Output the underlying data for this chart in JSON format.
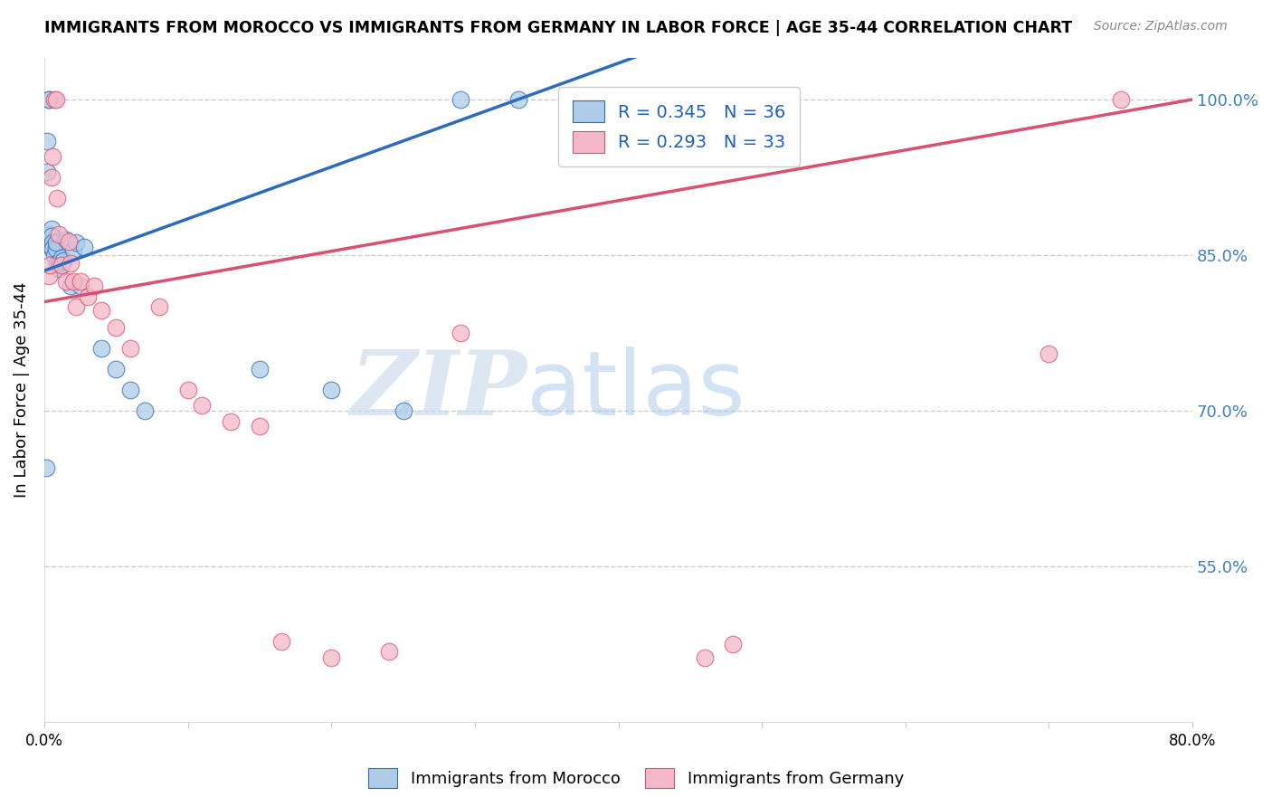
{
  "title": "IMMIGRANTS FROM MOROCCO VS IMMIGRANTS FROM GERMANY IN LABOR FORCE | AGE 35-44 CORRELATION CHART",
  "source": "Source: ZipAtlas.com",
  "ylabel": "In Labor Force | Age 35-44",
  "legend_bottom": [
    "Immigrants from Morocco",
    "Immigrants from Germany"
  ],
  "xlim": [
    0.0,
    0.8
  ],
  "ylim": [
    0.4,
    1.04
  ],
  "yticks": [
    0.55,
    0.7,
    0.85,
    1.0
  ],
  "ytick_labels": [
    "55.0%",
    "70.0%",
    "85.0%",
    "100.0%"
  ],
  "xticks": [
    0.0,
    0.1,
    0.2,
    0.3,
    0.4,
    0.5,
    0.6,
    0.7,
    0.8
  ],
  "xtick_labels": [
    "0.0%",
    "",
    "",
    "",
    "",
    "",
    "",
    "",
    "80.0%"
  ],
  "R_morocco": 0.345,
  "N_morocco": 36,
  "R_germany": 0.293,
  "N_germany": 33,
  "blue_color": "#aecce8",
  "blue_line_color": "#2d6bbf",
  "pink_color": "#f5b8c8",
  "pink_line_color": "#d95070",
  "watermark_zip": "ZIP",
  "watermark_atlas": "atlas",
  "morocco_x": [
    0.001,
    0.002,
    0.002,
    0.003,
    0.003,
    0.004,
    0.004,
    0.005,
    0.005,
    0.005,
    0.006,
    0.006,
    0.007,
    0.008,
    0.008,
    0.009,
    0.01,
    0.01,
    0.011,
    0.012,
    0.013,
    0.015,
    0.018,
    0.02,
    0.022,
    0.025,
    0.028,
    0.04,
    0.05,
    0.06,
    0.07,
    0.15,
    0.2,
    0.25,
    0.29,
    0.33
  ],
  "morocco_y": [
    0.645,
    0.96,
    0.93,
    1.0,
    1.0,
    0.87,
    0.86,
    0.875,
    0.868,
    0.857,
    0.862,
    0.856,
    0.85,
    0.856,
    0.862,
    0.842,
    0.842,
    0.837,
    0.843,
    0.847,
    0.845,
    0.865,
    0.82,
    0.855,
    0.862,
    0.82,
    0.858,
    0.76,
    0.74,
    0.72,
    0.7,
    0.74,
    0.72,
    0.7,
    1.0,
    1.0
  ],
  "germany_x": [
    0.003,
    0.004,
    0.005,
    0.006,
    0.007,
    0.008,
    0.009,
    0.01,
    0.012,
    0.015,
    0.017,
    0.018,
    0.02,
    0.022,
    0.025,
    0.03,
    0.035,
    0.04,
    0.05,
    0.06,
    0.08,
    0.1,
    0.11,
    0.13,
    0.15,
    0.165,
    0.2,
    0.24,
    0.29,
    0.46,
    0.48,
    0.7,
    0.75
  ],
  "germany_y": [
    0.83,
    0.84,
    0.925,
    0.945,
    1.0,
    1.0,
    0.905,
    0.87,
    0.84,
    0.825,
    0.863,
    0.842,
    0.825,
    0.8,
    0.825,
    0.81,
    0.82,
    0.797,
    0.78,
    0.76,
    0.8,
    0.72,
    0.705,
    0.69,
    0.685,
    0.478,
    0.462,
    0.468,
    0.775,
    0.462,
    0.475,
    0.755,
    1.0
  ],
  "blue_trend_x0": 0.0,
  "blue_trend_y0": 0.835,
  "blue_trend_x1": 0.33,
  "blue_trend_y1": 1.0,
  "pink_trend_x0": 0.0,
  "pink_trend_y0": 0.805,
  "pink_trend_x1": 0.8,
  "pink_trend_y1": 1.0
}
